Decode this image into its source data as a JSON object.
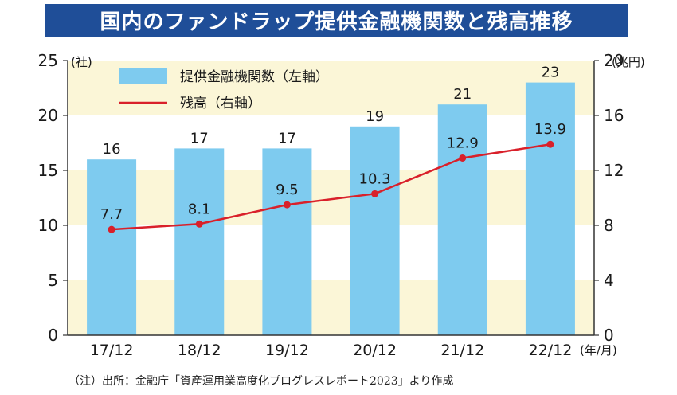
{
  "title": "国内のファンドラップ提供金融機関数と残高推移",
  "note": "（注）出所：金融庁「資産運用業高度化プログレスレポート2023」より作成",
  "chart_data": {
    "type": "bar",
    "categories": [
      "17/12",
      "18/12",
      "19/12",
      "20/12",
      "21/12",
      "22/12"
    ],
    "x_unit": "(年/月)",
    "series": [
      {
        "name": "提供金融機関数（左軸）",
        "type": "bar",
        "axis": "left",
        "values": [
          16,
          17,
          17,
          19,
          21,
          23
        ],
        "color": "#7ecbef"
      },
      {
        "name": "残高（右軸）",
        "type": "line",
        "axis": "right",
        "values": [
          7.7,
          8.1,
          9.5,
          10.3,
          12.9,
          13.9
        ],
        "color": "#d9202a"
      }
    ],
    "left_axis": {
      "unit": "(社)",
      "ylim": [
        0,
        25
      ],
      "ticks": [
        0,
        5,
        10,
        15,
        20,
        25
      ]
    },
    "right_axis": {
      "unit": "(兆円)",
      "ylim": [
        0,
        20
      ],
      "ticks": [
        0,
        4,
        8,
        12,
        16,
        20
      ]
    },
    "band_colors": [
      "#fbf6d7",
      "#ffffff"
    ],
    "legend_placement": "top-left",
    "grid": false
  }
}
